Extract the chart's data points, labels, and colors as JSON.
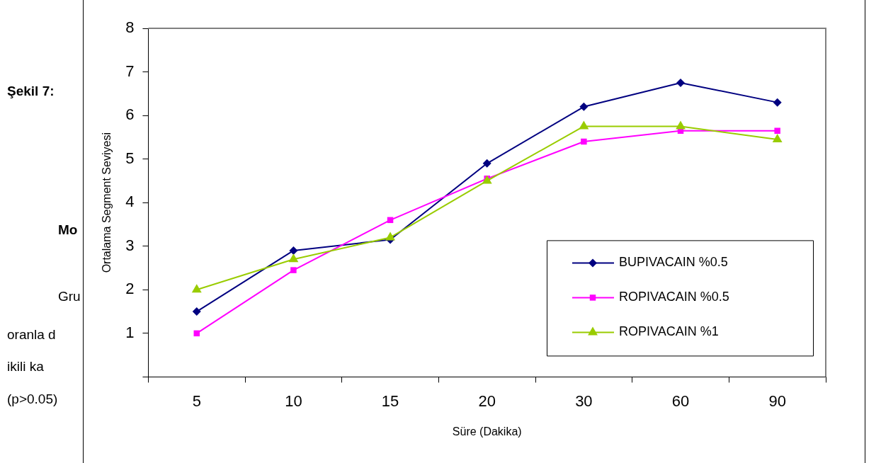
{
  "chart_data": {
    "type": "line",
    "xlabel": "Süre (Dakika)",
    "ylabel": "Ortalama Segment Seviyesi",
    "categories": [
      "5",
      "10",
      "15",
      "20",
      "30",
      "60",
      "90"
    ],
    "series": [
      {
        "name": "BUPIVACAIN %0.5",
        "color": "#000080",
        "marker": "diamond",
        "values": [
          1.5,
          2.9,
          3.15,
          4.9,
          6.2,
          6.75,
          6.3
        ]
      },
      {
        "name": "ROPIVACAIN %0.5",
        "color": "#ff00ff",
        "marker": "square",
        "values": [
          1.0,
          2.45,
          3.6,
          4.55,
          5.4,
          5.65,
          5.65
        ]
      },
      {
        "name": "ROPIVACAIN %1",
        "color": "#99cc00",
        "marker": "triangle",
        "values": [
          2.0,
          2.7,
          3.2,
          4.5,
          5.75,
          5.75,
          5.45
        ]
      }
    ],
    "ylim": [
      0,
      8
    ],
    "yticks": [
      {
        "value": 0,
        "label": null
      },
      1,
      2,
      3,
      4,
      5,
      6,
      7,
      8
    ],
    "grid": false,
    "legend": "bottom right",
    "line_style": "solid",
    "annotations": [
      "Şekil 7:",
      "Mo",
      "Gru",
      "oranla d",
      "ikili ka",
      "(p>0.05)"
    ]
  }
}
